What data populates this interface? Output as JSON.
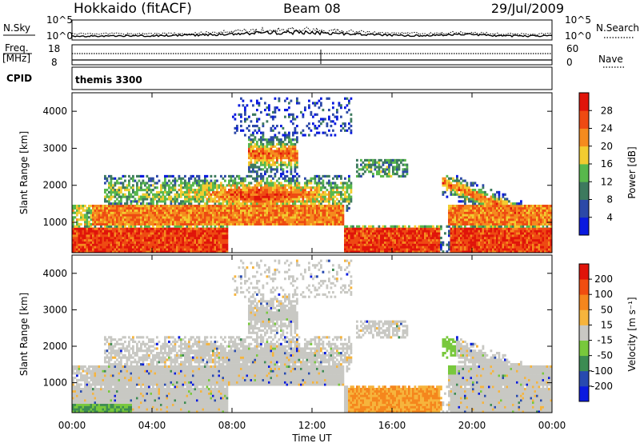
{
  "header": {
    "station": "Hokkaido (fitACF)",
    "beam": "Beam 08",
    "date": "29/Jul/2009"
  },
  "top_panels": {
    "noise": {
      "left_label": "N.Sky",
      "right_label": "N.Search",
      "left_ticks": [
        "10^5",
        "10^0"
      ],
      "right_ticks": [
        "10^5",
        "10^0"
      ]
    },
    "freq": {
      "left_label": "Freq.",
      "left_unit": "[MHz]",
      "right_label": "Nave",
      "left_ticks": [
        "18",
        "8"
      ],
      "right_ticks": [
        "60",
        "0"
      ]
    },
    "cpid": {
      "label": "CPID",
      "text": "themis 3300"
    }
  },
  "colors": {
    "power_scale": [
      "#0a1adf",
      "#2c49a8",
      "#3d7a5e",
      "#58b84c",
      "#f2cc30",
      "#f58b1e",
      "#ee4a12",
      "#e0140a"
    ],
    "velocity_scale": [
      "#e0140a",
      "#f04d10",
      "#f5861d",
      "#f6b43c",
      "#c8c8c3",
      "#78c83c",
      "#3c8c52",
      "#284ab0",
      "#0a1adf"
    ],
    "ground_scatter": "#c8c8c3"
  },
  "chart_data": [
    {
      "type": "heatmap",
      "name": "Power",
      "ylabel": "Slant Range [km]",
      "xlabel": "",
      "xlim": [
        0,
        24
      ],
      "ylim": [
        180,
        4500
      ],
      "yticks": [
        "1000",
        "2000",
        "3000",
        "4000"
      ],
      "colorbar_label": "Power [dB]",
      "colorbar_ticks": [
        "4",
        "8",
        "12",
        "16",
        "20",
        "24",
        "28"
      ],
      "colorbar_range": [
        0,
        32
      ]
    },
    {
      "type": "heatmap",
      "name": "Velocity",
      "ylabel": "Slant Range [km]",
      "xlabel": "Time UT",
      "xlim": [
        0,
        24
      ],
      "ylim": [
        180,
        4500
      ],
      "xticks": [
        "00:00",
        "04:00",
        "08:00",
        "12:00",
        "16:00",
        "20:00",
        "00:00"
      ],
      "yticks": [
        "1000",
        "2000",
        "3000",
        "4000"
      ],
      "colorbar_label": "Velocity [m s⁻¹]",
      "colorbar_ticks": [
        "200",
        "100",
        "50",
        "15",
        "-15",
        "-50",
        "-100",
        "-200"
      ],
      "colorbar_range": [
        -250,
        250
      ]
    }
  ]
}
